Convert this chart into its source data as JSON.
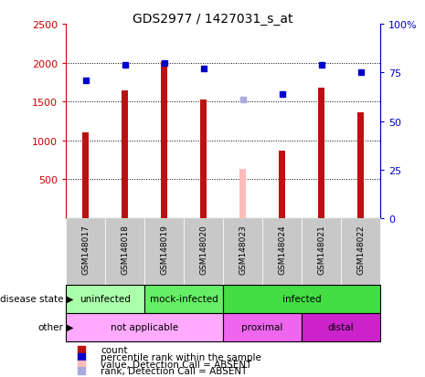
{
  "title": "GDS2977 / 1427031_s_at",
  "samples": [
    "GSM148017",
    "GSM148018",
    "GSM148019",
    "GSM148020",
    "GSM148023",
    "GSM148024",
    "GSM148021",
    "GSM148022"
  ],
  "counts": [
    1100,
    1640,
    2020,
    1530,
    null,
    870,
    1680,
    1360
  ],
  "counts_absent": [
    null,
    null,
    null,
    null,
    630,
    null,
    null,
    null
  ],
  "pct_ranks": [
    71,
    79,
    80,
    77,
    null,
    64,
    79,
    75
  ],
  "pct_ranks_absent": [
    null,
    null,
    null,
    null,
    61,
    null,
    null,
    null
  ],
  "bar_color": "#bb1111",
  "bar_absent_color": "#ffbbbb",
  "dot_color": "#0000cc",
  "dot_absent_color": "#aaaadd",
  "ylim_left": [
    0,
    2500
  ],
  "ylim_right": [
    0,
    100
  ],
  "yticks_left": [
    500,
    1000,
    1500,
    2000,
    2500
  ],
  "ytick_labels_left": [
    "500",
    "1000",
    "1500",
    "2000",
    "2500"
  ],
  "yticks_right": [
    0,
    25,
    50,
    75,
    100
  ],
  "ytick_labels_right": [
    "0",
    "25",
    "50",
    "75",
    "100%"
  ],
  "disease_groups": [
    {
      "label": "uninfected",
      "start": 0,
      "end": 2,
      "color": "#aaffaa"
    },
    {
      "label": "mock-infected",
      "start": 2,
      "end": 4,
      "color": "#66ee66"
    },
    {
      "label": "infected",
      "start": 4,
      "end": 8,
      "color": "#44dd44"
    }
  ],
  "other_groups": [
    {
      "label": "not applicable",
      "start": 0,
      "end": 4,
      "color": "#ffaaff"
    },
    {
      "label": "proximal",
      "start": 4,
      "end": 6,
      "color": "#ee66ee"
    },
    {
      "label": "distal",
      "start": 6,
      "end": 8,
      "color": "#cc22cc"
    }
  ],
  "left_yaxis_color": "#cc0000",
  "right_yaxis_color": "#0000cc",
  "bg_color": "#ffffff",
  "bar_width": 0.15,
  "dot_size": 55
}
